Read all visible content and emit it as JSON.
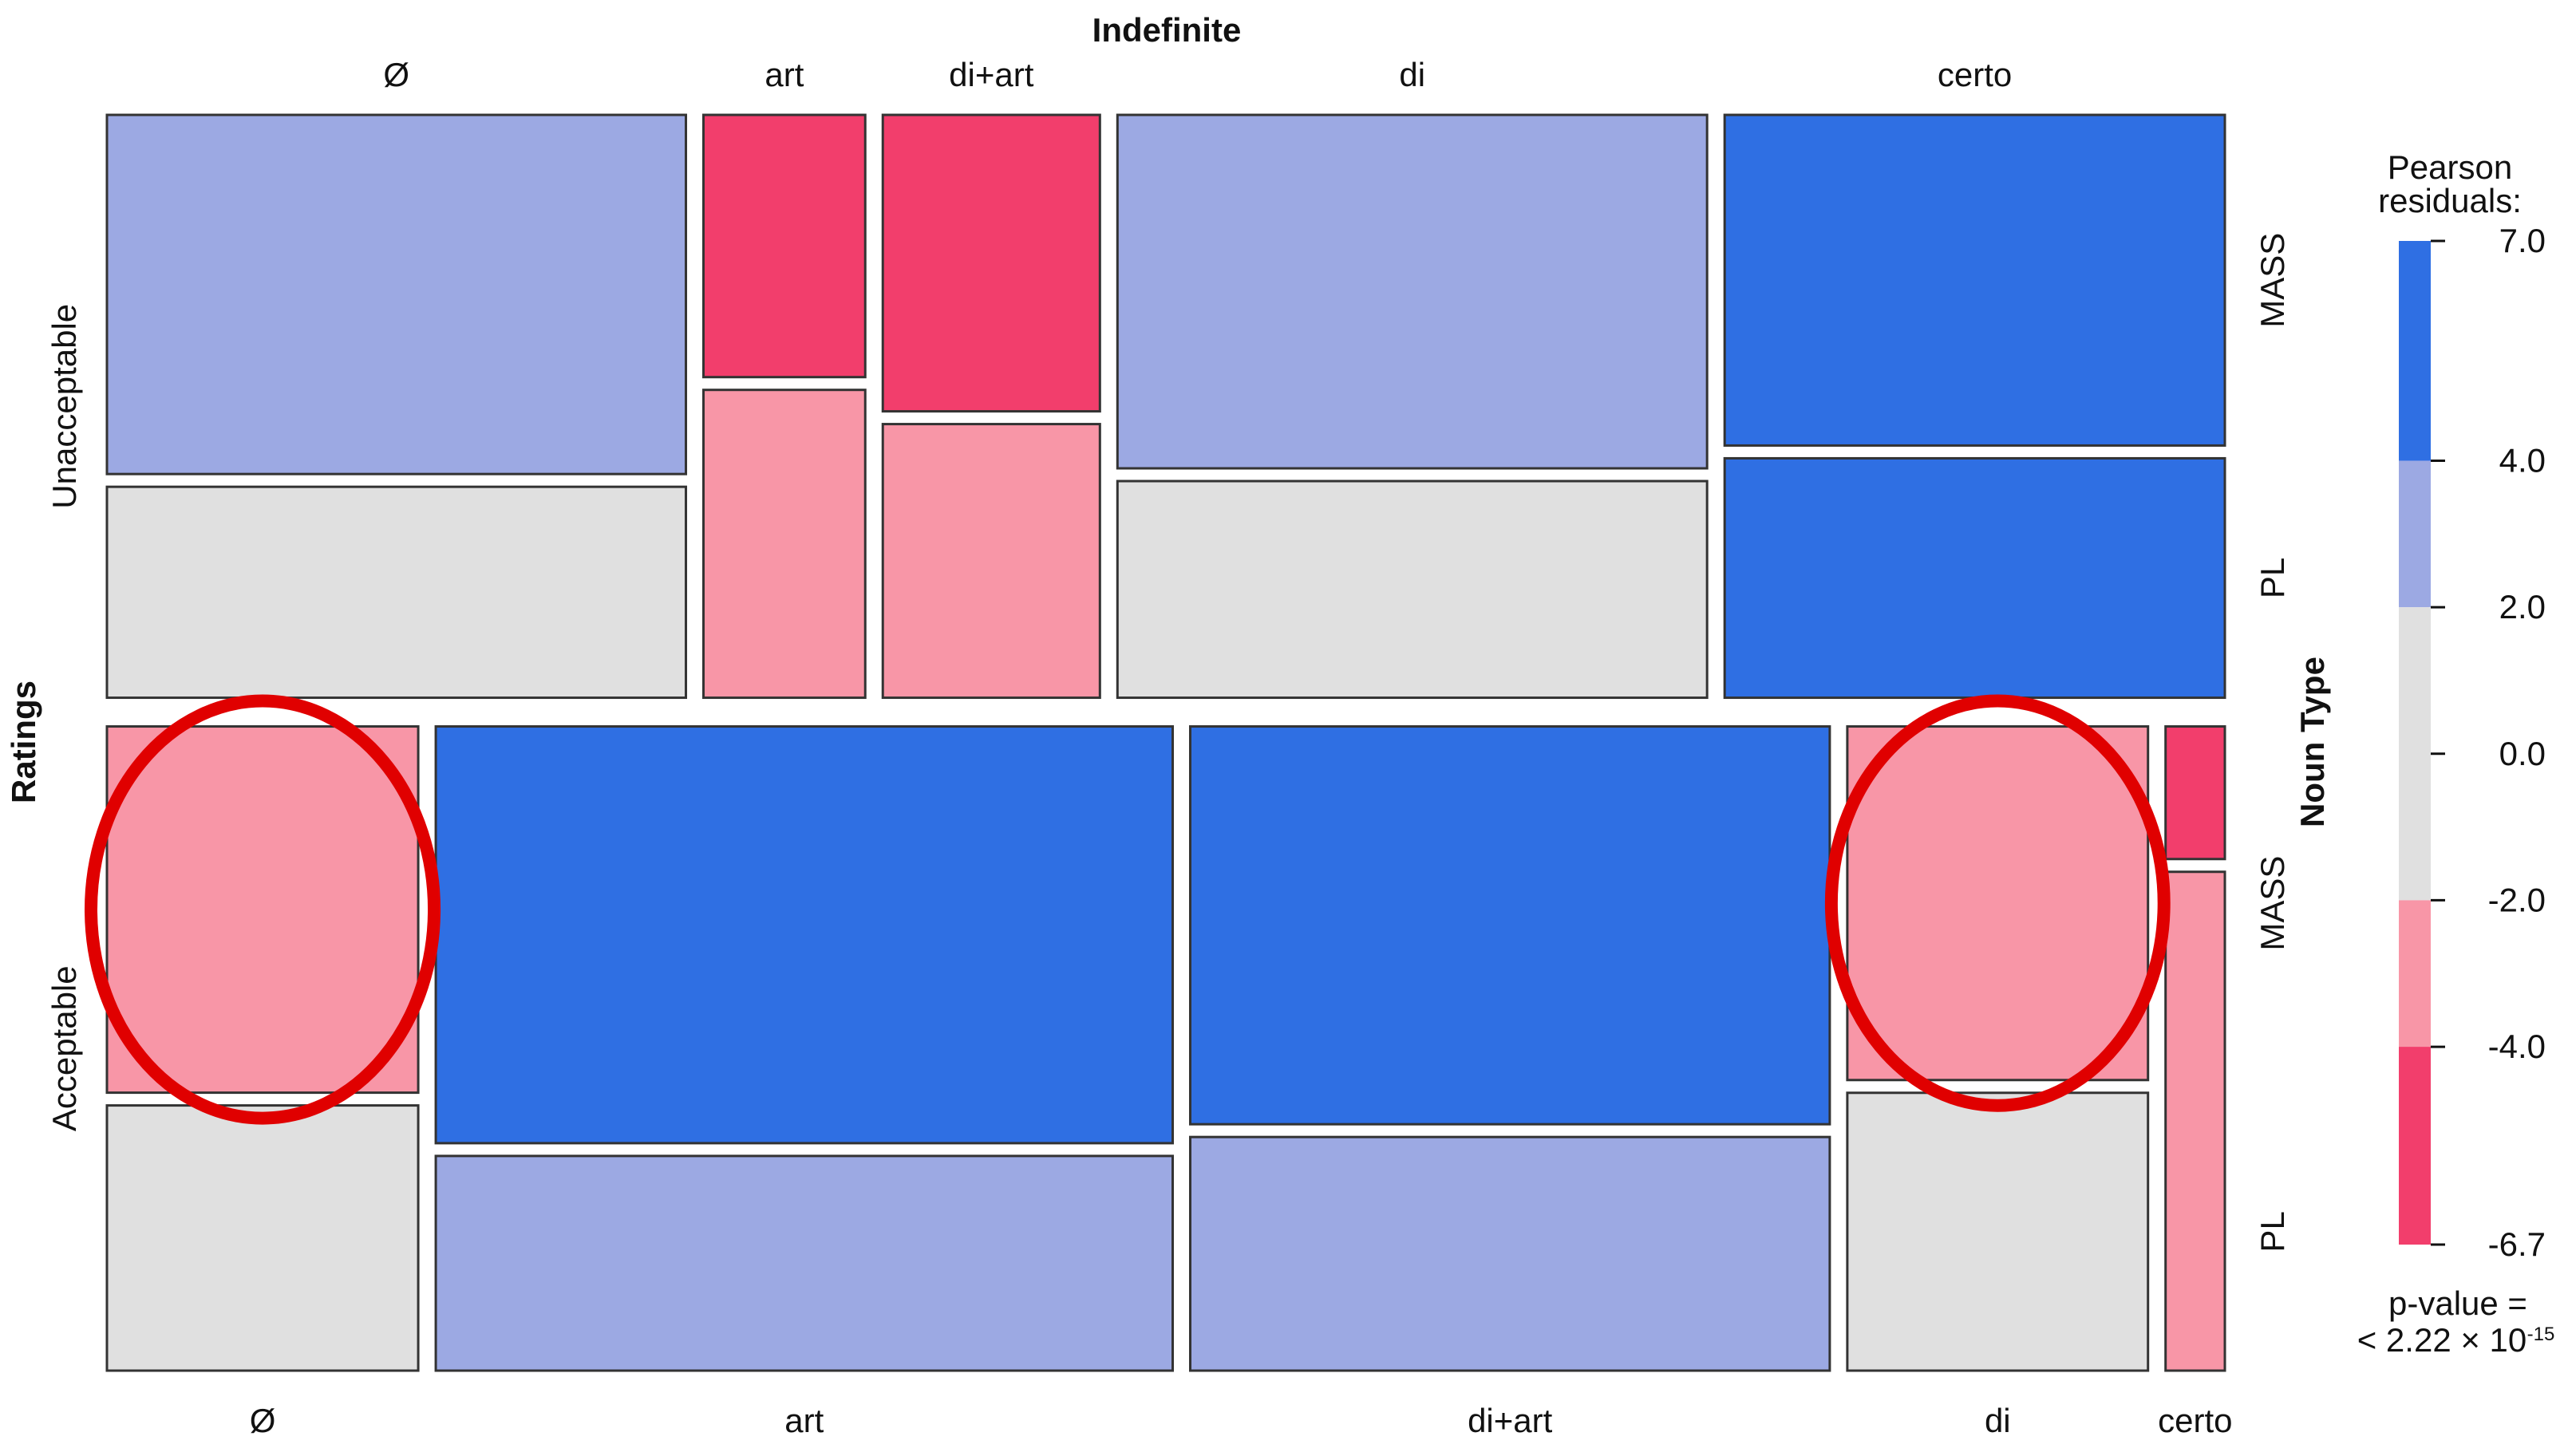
{
  "chart_data": {
    "type": "mosaic",
    "title": "",
    "top_axis_title": "Indefinite",
    "left_axis_title": "Ratings",
    "right_axis_title": "Noun Type",
    "ratings": [
      "Unacceptable",
      "Acceptable"
    ],
    "noun_types": [
      "MASS",
      "PL"
    ],
    "indefinite_levels": [
      "Ø",
      "art",
      "di+art",
      "di",
      "certo"
    ],
    "rows": [
      {
        "rating": "Unacceptable",
        "cells": [
          {
            "indefinite": "Ø",
            "width_share": 0.272,
            "mass_share": 0.63,
            "mass_residual": 3.0,
            "pl_residual": 0.5
          },
          {
            "indefinite": "art",
            "width_share": 0.076,
            "mass_share": 0.46,
            "mass_residual": -5.0,
            "pl_residual": -3.0
          },
          {
            "indefinite": "di+art",
            "width_share": 0.102,
            "mass_share": 0.52,
            "mass_residual": -5.0,
            "pl_residual": -3.0
          },
          {
            "indefinite": "di",
            "width_share": 0.277,
            "mass_share": 0.62,
            "mass_residual": 3.0,
            "pl_residual": 0.5
          },
          {
            "indefinite": "certo",
            "width_share": 0.235,
            "mass_share": 0.58,
            "mass_residual": 7.0,
            "pl_residual": 5.0
          }
        ]
      },
      {
        "rating": "Acceptable",
        "cells": [
          {
            "indefinite": "Ø",
            "width_share": 0.147,
            "mass_share": 0.58,
            "mass_residual": -3.0,
            "pl_residual": 0.5
          },
          {
            "indefinite": "art",
            "width_share": 0.348,
            "mass_share": 0.66,
            "mass_residual": 7.0,
            "pl_residual": 3.0
          },
          {
            "indefinite": "di+art",
            "width_share": 0.302,
            "mass_share": 0.63,
            "mass_residual": 7.0,
            "pl_residual": 3.0
          },
          {
            "indefinite": "di",
            "width_share": 0.142,
            "mass_share": 0.56,
            "mass_residual": -3.0,
            "pl_residual": 0.5
          },
          {
            "indefinite": "certo",
            "width_share": 0.028,
            "mass_share": 0.21,
            "mass_residual": -5.0,
            "pl_residual": -3.0
          }
        ]
      }
    ],
    "row_height_shares": [
      0.475,
      0.525
    ],
    "legend": {
      "title_line1": "Pearson",
      "title_line2": "residuals:",
      "ticks": [
        7.0,
        4.0,
        2.0,
        0.0,
        -2.0,
        -4.0,
        -6.7
      ],
      "tick_labels": [
        "7.0",
        "4.0",
        "2.0",
        "0.0",
        "-2.0",
        "-4.0",
        "-6.7"
      ],
      "bands": [
        {
          "from": 4.0,
          "to": 7.0,
          "color": "#2f6fe3"
        },
        {
          "from": 2.0,
          "to": 4.0,
          "color": "#9ca9e3"
        },
        {
          "from": -2.0,
          "to": 2.0,
          "color": "#e0e0e0"
        },
        {
          "from": -4.0,
          "to": -2.0,
          "color": "#f896a7"
        },
        {
          "from": -6.7,
          "to": -4.0,
          "color": "#f23e6c"
        }
      ]
    },
    "p_value_line1": "p-value =",
    "p_value_line2": "< 2.22 × 10",
    "p_value_exponent": "-15",
    "highlighted_cells": [
      {
        "rating": "Acceptable",
        "indefinite": "Ø",
        "noun_type": "MASS"
      },
      {
        "rating": "Acceptable",
        "indefinite": "di",
        "noun_type": "MASS"
      }
    ]
  }
}
